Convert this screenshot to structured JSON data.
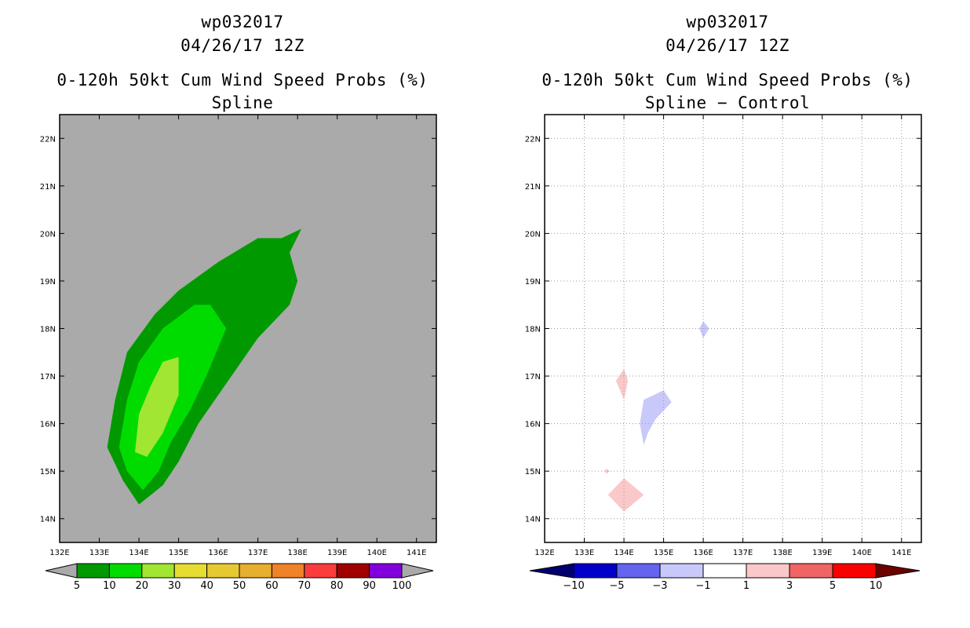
{
  "chart_data": [
    {
      "type": "heatmap",
      "storm_id": "wp032017",
      "date": "04/26/17 12Z",
      "title": "0-120h 50kt Cum Wind Speed Probs (%)",
      "subtitle": "Spline",
      "background_color": "#aaaaaa",
      "xlim": [
        132,
        141.5
      ],
      "ylim": [
        13.5,
        22.5
      ],
      "x_ticks": [
        132,
        133,
        134,
        135,
        136,
        137,
        138,
        139,
        140,
        141
      ],
      "x_tick_labels": [
        "132E",
        "133E",
        "134E",
        "135E",
        "136E",
        "137E",
        "138E",
        "139E",
        "140E",
        "141E"
      ],
      "y_ticks": [
        14,
        15,
        16,
        17,
        18,
        19,
        20,
        21,
        22
      ],
      "y_tick_labels": [
        "14N",
        "15N",
        "16N",
        "17N",
        "18N",
        "19N",
        "20N",
        "21N",
        "22N"
      ],
      "grid": false,
      "contours": [
        {
          "level": "5-10",
          "color": "#009a00",
          "points": [
            [
              133.2,
              15.5
            ],
            [
              133.4,
              16.5
            ],
            [
              133.7,
              17.5
            ],
            [
              134.4,
              18.3
            ],
            [
              135.0,
              18.8
            ],
            [
              136.0,
              19.4
            ],
            [
              137.0,
              19.9
            ],
            [
              137.6,
              19.9
            ],
            [
              138.1,
              20.1
            ],
            [
              137.8,
              19.6
            ],
            [
              138.0,
              19.0
            ],
            [
              137.8,
              18.5
            ],
            [
              137.0,
              17.8
            ],
            [
              136.5,
              17.2
            ],
            [
              135.5,
              16.0
            ],
            [
              135.0,
              15.2
            ],
            [
              134.6,
              14.7
            ],
            [
              134.0,
              14.3
            ],
            [
              133.6,
              14.8
            ],
            [
              133.2,
              15.5
            ]
          ]
        },
        {
          "level": "10-20",
          "color": "#00dc00",
          "points": [
            [
              133.5,
              15.5
            ],
            [
              133.7,
              16.5
            ],
            [
              134.0,
              17.3
            ],
            [
              134.6,
              18.0
            ],
            [
              135.4,
              18.5
            ],
            [
              135.8,
              18.5
            ],
            [
              136.2,
              18.0
            ],
            [
              135.7,
              17.0
            ],
            [
              135.3,
              16.3
            ],
            [
              134.8,
              15.6
            ],
            [
              134.5,
              15.0
            ],
            [
              134.1,
              14.6
            ],
            [
              133.7,
              15.0
            ],
            [
              133.5,
              15.5
            ]
          ]
        },
        {
          "level": "20-30",
          "color": "#a0e632",
          "points": [
            [
              133.9,
              15.4
            ],
            [
              134.0,
              16.2
            ],
            [
              134.3,
              16.8
            ],
            [
              134.6,
              17.3
            ],
            [
              135.0,
              17.4
            ],
            [
              135.0,
              16.6
            ],
            [
              134.6,
              15.8
            ],
            [
              134.2,
              15.3
            ],
            [
              133.9,
              15.4
            ]
          ]
        }
      ],
      "colorbar": {
        "labels": [
          "5",
          "10",
          "20",
          "30",
          "40",
          "50",
          "60",
          "70",
          "80",
          "90",
          "100"
        ],
        "colors": [
          "#009a00",
          "#00dc00",
          "#a0e632",
          "#e6dc32",
          "#e6c832",
          "#e6af2d",
          "#f08228",
          "#fa3c3c",
          "#a00000",
          "#8200dc"
        ],
        "under_color": "#aaaaaa",
        "over_color": "#aaaaaa"
      }
    },
    {
      "type": "heatmap",
      "storm_id": "wp032017",
      "date": "04/26/17 12Z",
      "title": "0-120h 50kt Cum Wind Speed Probs (%)",
      "subtitle": "Spline − Control",
      "background_color": "#ffffff",
      "xlim": [
        132,
        141.5
      ],
      "ylim": [
        13.5,
        22.5
      ],
      "x_ticks": [
        132,
        133,
        134,
        135,
        136,
        137,
        138,
        139,
        140,
        141
      ],
      "x_tick_labels": [
        "132E",
        "133E",
        "134E",
        "135E",
        "136E",
        "137E",
        "138E",
        "139E",
        "140E",
        "141E"
      ],
      "y_ticks": [
        14,
        15,
        16,
        17,
        18,
        19,
        20,
        21,
        22
      ],
      "y_tick_labels": [
        "14N",
        "15N",
        "16N",
        "17N",
        "18N",
        "19N",
        "20N",
        "21N",
        "22N"
      ],
      "grid": true,
      "contours": [
        {
          "level": "-3 to -1",
          "color": "#c8c8fa",
          "points": [
            [
              135.9,
              18.0
            ],
            [
              136.0,
              18.15
            ],
            [
              136.15,
              18.0
            ],
            [
              136.0,
              17.8
            ],
            [
              135.9,
              18.0
            ]
          ]
        },
        {
          "level": "-3 to -1",
          "color": "#c8c8fa",
          "points": [
            [
              134.4,
              16.0
            ],
            [
              134.5,
              16.5
            ],
            [
              135.0,
              16.7
            ],
            [
              135.2,
              16.45
            ],
            [
              134.8,
              16.1
            ],
            [
              134.6,
              15.8
            ],
            [
              134.5,
              15.55
            ],
            [
              134.4,
              16.0
            ]
          ]
        },
        {
          "level": "1 to 3",
          "color": "#fac8c8",
          "points": [
            [
              133.8,
              16.9
            ],
            [
              134.0,
              17.15
            ],
            [
              134.1,
              16.9
            ],
            [
              134.0,
              16.5
            ],
            [
              133.8,
              16.9
            ]
          ]
        },
        {
          "level": "1 to 3",
          "color": "#fac8c8",
          "points": [
            [
              133.5,
              15.0
            ],
            [
              133.57,
              15.05
            ],
            [
              133.64,
              15.0
            ],
            [
              133.57,
              14.95
            ],
            [
              133.5,
              15.0
            ]
          ]
        },
        {
          "level": "1 to 3",
          "color": "#fac8c8",
          "points": [
            [
              133.6,
              14.5
            ],
            [
              134.0,
              14.85
            ],
            [
              134.5,
              14.5
            ],
            [
              134.0,
              14.15
            ],
            [
              133.6,
              14.5
            ]
          ]
        }
      ],
      "colorbar": {
        "labels": [
          "−10",
          "−5",
          "−3",
          "−1",
          "1",
          "3",
          "5",
          "10"
        ],
        "colors": [
          "#0000c8",
          "#6464f0",
          "#c8c8fa",
          "#ffffff",
          "#fac8c8",
          "#f06464",
          "#fa0000"
        ],
        "under_color": "#00006e",
        "over_color": "#6e0000"
      }
    }
  ]
}
